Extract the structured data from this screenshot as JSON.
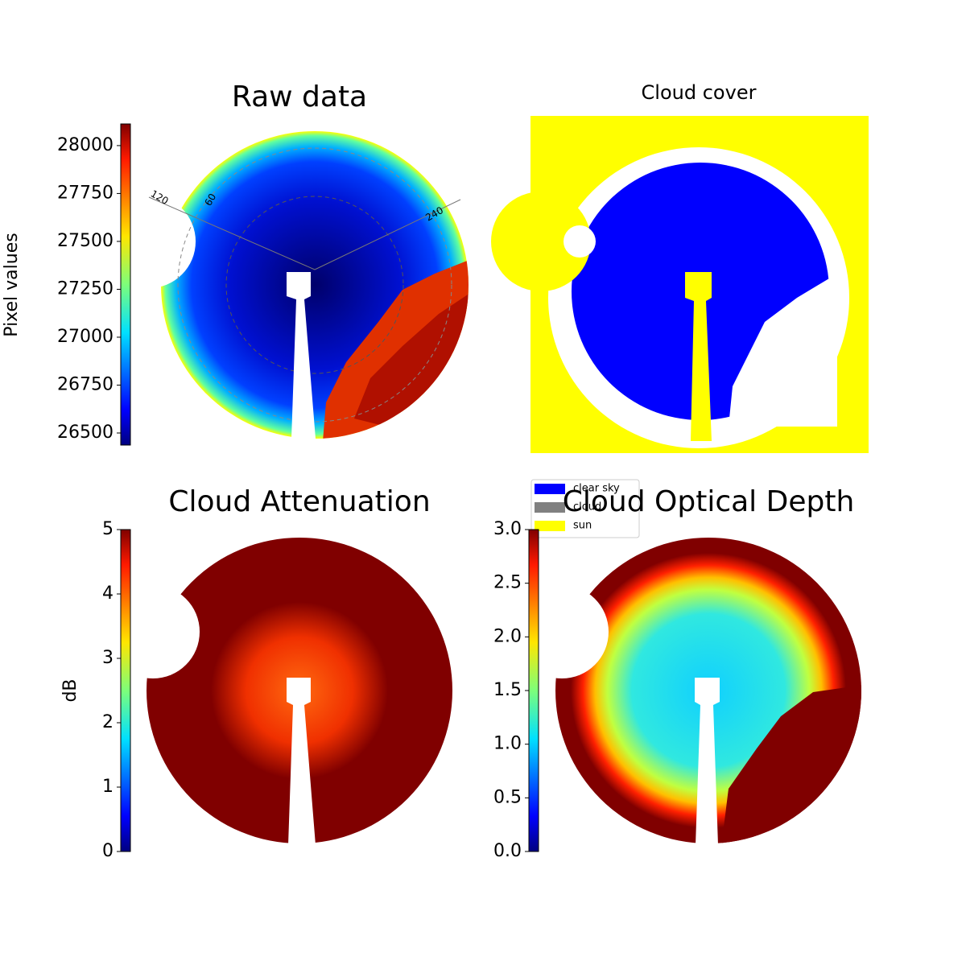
{
  "chart_data": [
    {
      "type": "image",
      "title": "Raw data",
      "colorbar_label": "Pixel values",
      "ylim": [
        26437,
        28113
      ],
      "yticks": [
        26500,
        26750,
        27000,
        27250,
        27500,
        27750,
        28000
      ],
      "annotations": [
        "120",
        "60",
        "240"
      ]
    },
    {
      "type": "image",
      "title": "Cloud cover",
      "legend_entries": [
        {
          "name": "clear sky",
          "color": "#0000ff"
        },
        {
          "name": "cloud",
          "color": "#808080"
        },
        {
          "name": "sun",
          "color": "#ffff00"
        }
      ]
    },
    {
      "type": "image",
      "title": "Cloud Attenuation",
      "colorbar_label": "dB",
      "ylim": [
        0,
        5
      ],
      "yticks": [
        0,
        1,
        2,
        3,
        4,
        5
      ]
    },
    {
      "type": "image",
      "title": "Cloud Optical Depth",
      "ylim": [
        0,
        3
      ],
      "yticks": [
        {
          "value": 0,
          "label": "0.0"
        },
        {
          "value": 0.5,
          "label": "0.5"
        },
        {
          "value": 1,
          "label": "1.0"
        },
        {
          "value": 1.5,
          "label": "1.5"
        },
        {
          "value": 2,
          "label": "2.0"
        },
        {
          "value": 2.5,
          "label": "2.5"
        },
        {
          "value": 3,
          "label": "3.0"
        }
      ]
    }
  ]
}
